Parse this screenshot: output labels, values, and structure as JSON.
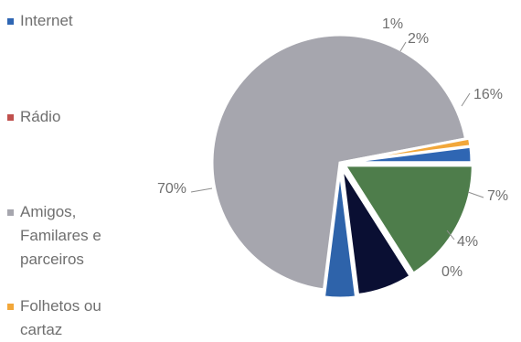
{
  "chart_data": {
    "type": "pie",
    "title": "",
    "categories": [
      "Internet",
      "Rádio",
      "Amigos, Familares e parceiros",
      "Folhetos ou cartaz",
      "",
      "",
      ""
    ],
    "values": [
      2,
      0,
      70,
      1,
      16,
      7,
      4
    ],
    "labels": [
      "2%",
      "0%",
      "70%",
      "1%",
      "16%",
      "7%",
      "4%"
    ],
    "colors": [
      "#2f66b3",
      "#c0504d",
      "#a6a6ae",
      "#f2a73a",
      "#4e7d4b",
      "#0a0f33",
      "#2e63aa"
    ],
    "legend": {
      "placement": "left",
      "entries": [
        {
          "label": "Internet",
          "color": "#2f66b3"
        },
        {
          "label": "Rádio",
          "color": "#c0504d"
        },
        {
          "label": "Amigos,\nFamilares e\nparceiros",
          "color": "#a6a6ae"
        },
        {
          "label": "Folhetos ou\ncartaz",
          "color": "#f2a73a"
        }
      ]
    }
  }
}
